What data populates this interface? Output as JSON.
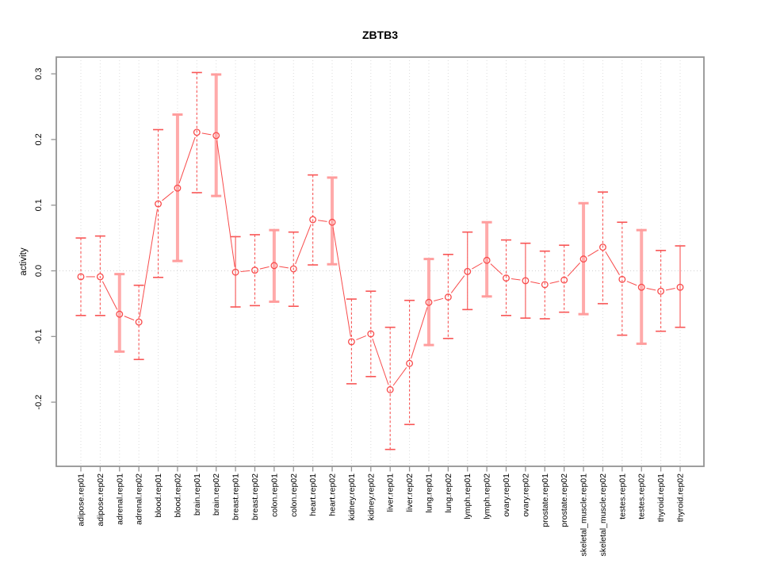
{
  "page": {
    "background_color": "#ffffff"
  },
  "chart_data": {
    "type": "scatter",
    "title": "ZBTB3",
    "ylabel": "activity",
    "xlabel": "",
    "ylim": [
      -0.3,
      0.325
    ],
    "yticks": [
      -0.2,
      -0.1,
      0.0,
      0.1,
      0.2,
      0.3
    ],
    "ytick_labels": [
      "-0.2",
      "-0.1",
      "0.0",
      "0.1",
      "0.2",
      "0.3"
    ],
    "legend_position": "none",
    "grid": {
      "vertical": "dotted line at every category",
      "horizontal": "dotted line at zero only"
    },
    "marker": "open-circle",
    "line_type": "points-joined-with-gaps",
    "colors": {
      "series": "#f84b4b",
      "error_bar_thin": "#f85555",
      "error_bar_thick": "#ffaaaa",
      "error_cap_thick": "#ff9d9d",
      "gridline": "#dcdcdc",
      "zero_line": "#d2d2d2",
      "axis_box": "#949494",
      "text": "#000000"
    },
    "categories": [
      "adipose.rep01",
      "adipose.rep02",
      "adrenal.rep01",
      "adrenal.rep02",
      "blood.rep01",
      "blood.rep02",
      "brain.rep01",
      "brain.rep02",
      "breast.rep01",
      "breast.rep02",
      "colon.rep01",
      "colon.rep02",
      "heart.rep01",
      "heart.rep02",
      "kidney.rep01",
      "kidney.rep02",
      "liver.rep01",
      "liver.rep02",
      "lung.rep01",
      "lung.rep02",
      "lymph.rep01",
      "lymph.rep02",
      "ovary.rep01",
      "ovary.rep02",
      "prostate.rep01",
      "prostate.rep02",
      "skeletal_muscle.rep01",
      "skeletal_muscle.rep02",
      "testes.rep01",
      "testes.rep02",
      "thyroid.rep01",
      "thyroid.rep02"
    ],
    "points": [
      {
        "label": "adipose.rep01",
        "value": -0.009,
        "hi": 0.05,
        "lo": -0.068,
        "style": "dashed"
      },
      {
        "label": "adipose.rep02",
        "value": -0.009,
        "hi": 0.053,
        "lo": -0.068,
        "style": "dashed"
      },
      {
        "label": "adrenal.rep01",
        "value": -0.066,
        "hi": -0.005,
        "lo": -0.123,
        "style": "thick"
      },
      {
        "label": "adrenal.rep02",
        "value": -0.078,
        "hi": -0.022,
        "lo": -0.135,
        "style": "dashed"
      },
      {
        "label": "blood.rep01",
        "value": 0.102,
        "hi": 0.215,
        "lo": -0.01,
        "style": "dashed"
      },
      {
        "label": "blood.rep02",
        "value": 0.126,
        "hi": 0.238,
        "lo": 0.015,
        "style": "thick"
      },
      {
        "label": "brain.rep01",
        "value": 0.211,
        "hi": 0.302,
        "lo": 0.119,
        "style": "dashed"
      },
      {
        "label": "brain.rep02",
        "value": 0.206,
        "hi": 0.299,
        "lo": 0.114,
        "style": "thick"
      },
      {
        "label": "breast.rep01",
        "value": -0.002,
        "hi": 0.052,
        "lo": -0.055,
        "style": "solid"
      },
      {
        "label": "breast.rep02",
        "value": 0.001,
        "hi": 0.055,
        "lo": -0.053,
        "style": "dashed"
      },
      {
        "label": "colon.rep01",
        "value": 0.008,
        "hi": 0.062,
        "lo": -0.047,
        "style": "thick"
      },
      {
        "label": "colon.rep02",
        "value": 0.003,
        "hi": 0.059,
        "lo": -0.054,
        "style": "dashed"
      },
      {
        "label": "heart.rep01",
        "value": 0.078,
        "hi": 0.146,
        "lo": 0.009,
        "style": "dashed"
      },
      {
        "label": "heart.rep02",
        "value": 0.074,
        "hi": 0.142,
        "lo": 0.01,
        "style": "thick"
      },
      {
        "label": "kidney.rep01",
        "value": -0.108,
        "hi": -0.043,
        "lo": -0.172,
        "style": "dashed"
      },
      {
        "label": "kidney.rep02",
        "value": -0.096,
        "hi": -0.031,
        "lo": -0.161,
        "style": "dashed"
      },
      {
        "label": "liver.rep01",
        "value": -0.181,
        "hi": -0.086,
        "lo": -0.272,
        "style": "dashed"
      },
      {
        "label": "liver.rep02",
        "value": -0.141,
        "hi": -0.045,
        "lo": -0.234,
        "style": "dashed"
      },
      {
        "label": "lung.rep01",
        "value": -0.048,
        "hi": 0.018,
        "lo": -0.113,
        "style": "thick"
      },
      {
        "label": "lung.rep02",
        "value": -0.04,
        "hi": 0.025,
        "lo": -0.103,
        "style": "dashed"
      },
      {
        "label": "lymph.rep01",
        "value": -0.001,
        "hi": 0.059,
        "lo": -0.059,
        "style": "solid"
      },
      {
        "label": "lymph.rep02",
        "value": 0.016,
        "hi": 0.074,
        "lo": -0.039,
        "style": "thick"
      },
      {
        "label": "ovary.rep01",
        "value": -0.011,
        "hi": 0.047,
        "lo": -0.068,
        "style": "dashed"
      },
      {
        "label": "ovary.rep02",
        "value": -0.015,
        "hi": 0.042,
        "lo": -0.072,
        "style": "solid"
      },
      {
        "label": "prostate.rep01",
        "value": -0.021,
        "hi": 0.03,
        "lo": -0.073,
        "style": "dashed"
      },
      {
        "label": "prostate.rep02",
        "value": -0.014,
        "hi": 0.039,
        "lo": -0.063,
        "style": "dashed"
      },
      {
        "label": "skeletal_muscle.rep01",
        "value": 0.018,
        "hi": 0.103,
        "lo": -0.066,
        "style": "thick"
      },
      {
        "label": "skeletal_muscle.rep02",
        "value": 0.036,
        "hi": 0.12,
        "lo": -0.05,
        "style": "dashed"
      },
      {
        "label": "testes.rep01",
        "value": -0.013,
        "hi": 0.074,
        "lo": -0.098,
        "style": "dashed"
      },
      {
        "label": "testes.rep02",
        "value": -0.025,
        "hi": 0.062,
        "lo": -0.111,
        "style": "thick"
      },
      {
        "label": "thyroid.rep01",
        "value": -0.031,
        "hi": 0.031,
        "lo": -0.092,
        "style": "dashed"
      },
      {
        "label": "thyroid.rep02",
        "value": -0.025,
        "hi": 0.038,
        "lo": -0.086,
        "style": "solid"
      }
    ]
  }
}
